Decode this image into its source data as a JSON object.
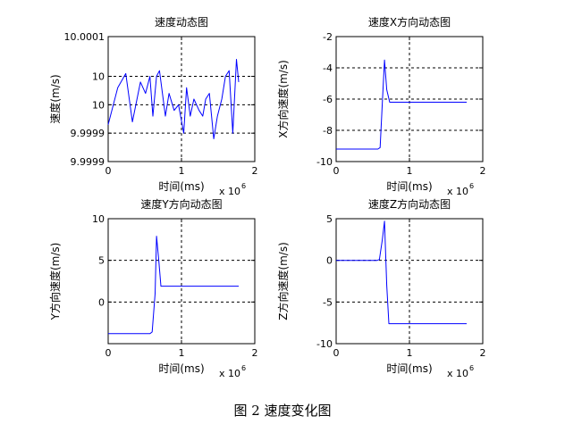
{
  "caption": "图 2  速度变化图",
  "line_color": "#0000ff",
  "chart_data": [
    {
      "type": "line",
      "title": "速度动态图",
      "xlabel": "时间(ms)",
      "ylabel": "速度(m/s)",
      "x_exponent": "x 10",
      "x_exponent_power": "6",
      "xlim": [
        0,
        2000000
      ],
      "ylim": [
        9.99988,
        10.0001
      ],
      "xticks": [
        0,
        1000000,
        2000000
      ],
      "xtick_labels": [
        "0",
        "1",
        "2"
      ],
      "yticks": [
        9.99988,
        9.99993,
        9.99998,
        10.00003,
        10.0001
      ],
      "ytick_labels": [
        "9.9999",
        "9.9999",
        "10",
        "10",
        "10.0001"
      ],
      "grid": true,
      "series": [
        {
          "x": [
            0,
            130000,
            240000,
            330000,
            440000,
            510000,
            570000,
            610000,
            660000,
            700000,
            780000,
            830000,
            900000,
            960000,
            1030000,
            1070000,
            1120000,
            1170000,
            1240000,
            1290000,
            1330000,
            1380000,
            1440000,
            1490000,
            1550000,
            1600000,
            1650000,
            1700000,
            1750000,
            1780000
          ],
          "y": [
            9.999945,
            10.00001,
            10.000035,
            9.99995,
            10.00002,
            10.0,
            10.00003,
            9.99996,
            10.00003,
            10.00004,
            9.99996,
            10.0,
            9.99997,
            9.99998,
            9.99993,
            10.00001,
            9.99996,
            9.99999,
            9.99997,
            9.99996,
            9.99999,
            10.0,
            9.99992,
            9.99996,
            9.99999,
            10.00003,
            10.00004,
            9.99993,
            10.00006,
            10.00002
          ]
        }
      ]
    },
    {
      "type": "line",
      "title": "速度X方向动态图",
      "xlabel": "时间(ms)",
      "ylabel": "X方向速度(m/s)",
      "x_exponent": "x 10",
      "x_exponent_power": "6",
      "xlim": [
        0,
        2000000
      ],
      "ylim": [
        -10,
        -2
      ],
      "xticks": [
        0,
        1000000,
        2000000
      ],
      "xtick_labels": [
        "0",
        "1",
        "2"
      ],
      "yticks": [
        -10,
        -8,
        -6,
        -4,
        -2
      ],
      "ytick_labels": [
        "-10",
        "-8",
        "-6",
        "-4",
        "-2"
      ],
      "grid": true,
      "series": [
        {
          "x": [
            0,
            570000,
            600000,
            630000,
            660000,
            690000,
            730000,
            1780000
          ],
          "y": [
            -9.2,
            -9.2,
            -9.1,
            -6.2,
            -3.5,
            -5.4,
            -6.2,
            -6.2
          ]
        }
      ]
    },
    {
      "type": "line",
      "title": "速度Y方向动态图",
      "xlabel": "时间(ms)",
      "ylabel": "Y方向速度(m/s)",
      "x_exponent": "x 10",
      "x_exponent_power": "6",
      "xlim": [
        0,
        2000000
      ],
      "ylim": [
        -5,
        10
      ],
      "xticks": [
        0,
        1000000,
        2000000
      ],
      "xtick_labels": [
        "0",
        "1",
        "2"
      ],
      "yticks": [
        -5,
        0,
        5,
        10
      ],
      "ytick_labels": [
        "",
        "0",
        "5",
        "10"
      ],
      "grid": true,
      "series": [
        {
          "x": [
            0,
            570000,
            600000,
            640000,
            660000,
            690000,
            720000,
            1780000
          ],
          "y": [
            -3.8,
            -3.8,
            -3.6,
            1.0,
            7.9,
            5.0,
            1.9,
            1.9
          ]
        }
      ]
    },
    {
      "type": "line",
      "title": "速度Z方向动态图",
      "xlabel": "时间(ms)",
      "ylabel": "Z方向速度(m/s)",
      "x_exponent": "x 10",
      "x_exponent_power": "6",
      "xlim": [
        0,
        2000000
      ],
      "ylim": [
        -10,
        5
      ],
      "xticks": [
        0,
        1000000,
        2000000
      ],
      "xtick_labels": [
        "0",
        "1",
        "2"
      ],
      "yticks": [
        -10,
        -5,
        0,
        5
      ],
      "ytick_labels": [
        "-10",
        "-5",
        "0",
        "5"
      ],
      "grid": true,
      "series": [
        {
          "x": [
            0,
            560000,
            590000,
            630000,
            660000,
            690000,
            720000,
            1780000
          ],
          "y": [
            0,
            0,
            0.1,
            2.5,
            4.7,
            -3.0,
            -7.6,
            -7.6
          ]
        }
      ]
    }
  ]
}
